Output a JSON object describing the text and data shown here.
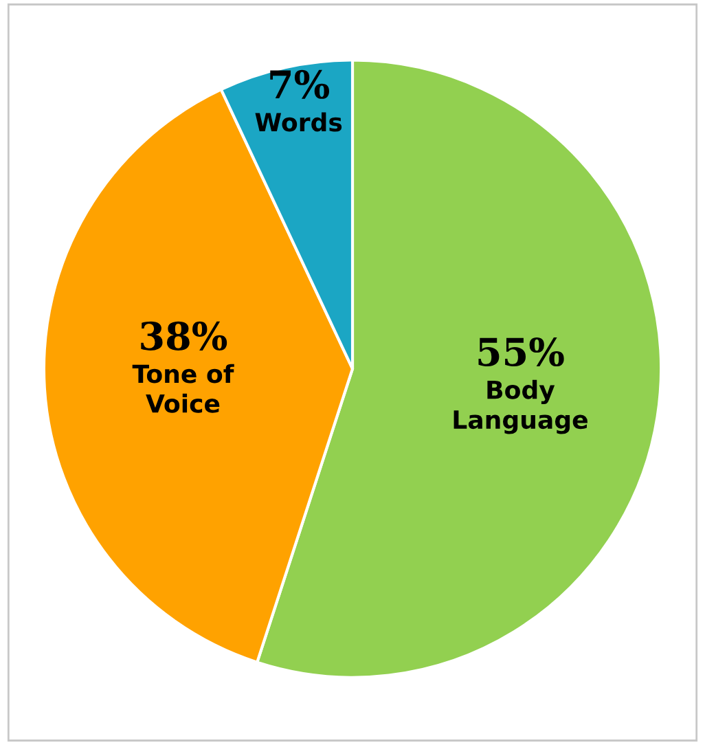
{
  "chart_data": {
    "type": "pie",
    "categories": [
      "Body\nLanguage",
      "Tone of\nVoice",
      "Words"
    ],
    "values": [
      55,
      38,
      7
    ],
    "value_labels": [
      "55%",
      "38%",
      "7%"
    ],
    "colors": [
      "#92d050",
      "#ffa200",
      "#1ba6c4"
    ],
    "legend": false
  }
}
